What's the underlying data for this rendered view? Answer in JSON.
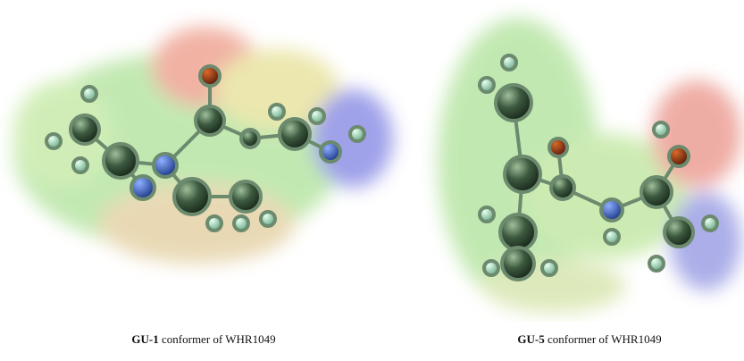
{
  "figures": [
    {
      "label": "GU-1",
      "caption": "conformer of WHR1049"
    },
    {
      "label": "GU-5",
      "caption": "conformer of WHR1049"
    }
  ]
}
